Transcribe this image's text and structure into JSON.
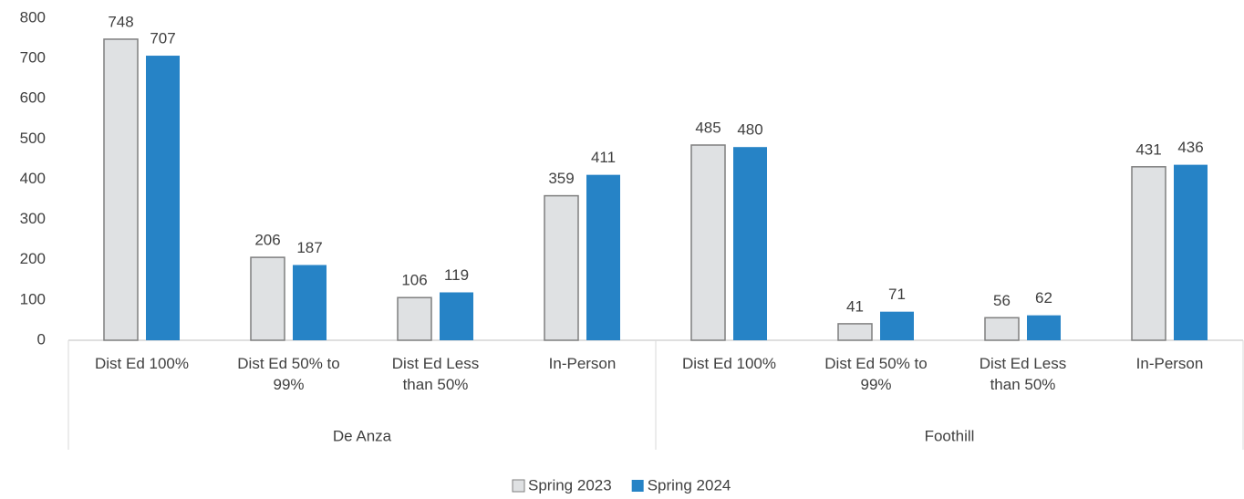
{
  "chart_data": {
    "type": "bar",
    "groups": [
      "De Anza",
      "Foothill"
    ],
    "categories": [
      "Dist Ed 100%",
      "Dist Ed 50% to\n99%",
      "Dist Ed Less\nthan 50%",
      "In-Person",
      "Dist Ed 100%",
      "Dist Ed 50% to\n99%",
      "Dist Ed Less\nthan 50%",
      "In-Person"
    ],
    "series": [
      {
        "name": "Spring 2023",
        "color": "#dfe1e3",
        "stroke": "#7f7f7f",
        "values": [
          748,
          206,
          106,
          359,
          485,
          41,
          56,
          431
        ]
      },
      {
        "name": "Spring 2024",
        "color": "#2683c6",
        "values": [
          707,
          187,
          119,
          411,
          480,
          71,
          62,
          436
        ]
      }
    ],
    "ylim": [
      0,
      800
    ],
    "yticks": [
      0,
      100,
      200,
      300,
      400,
      500,
      600,
      700,
      800
    ],
    "grid": false,
    "legend": "bottom"
  }
}
